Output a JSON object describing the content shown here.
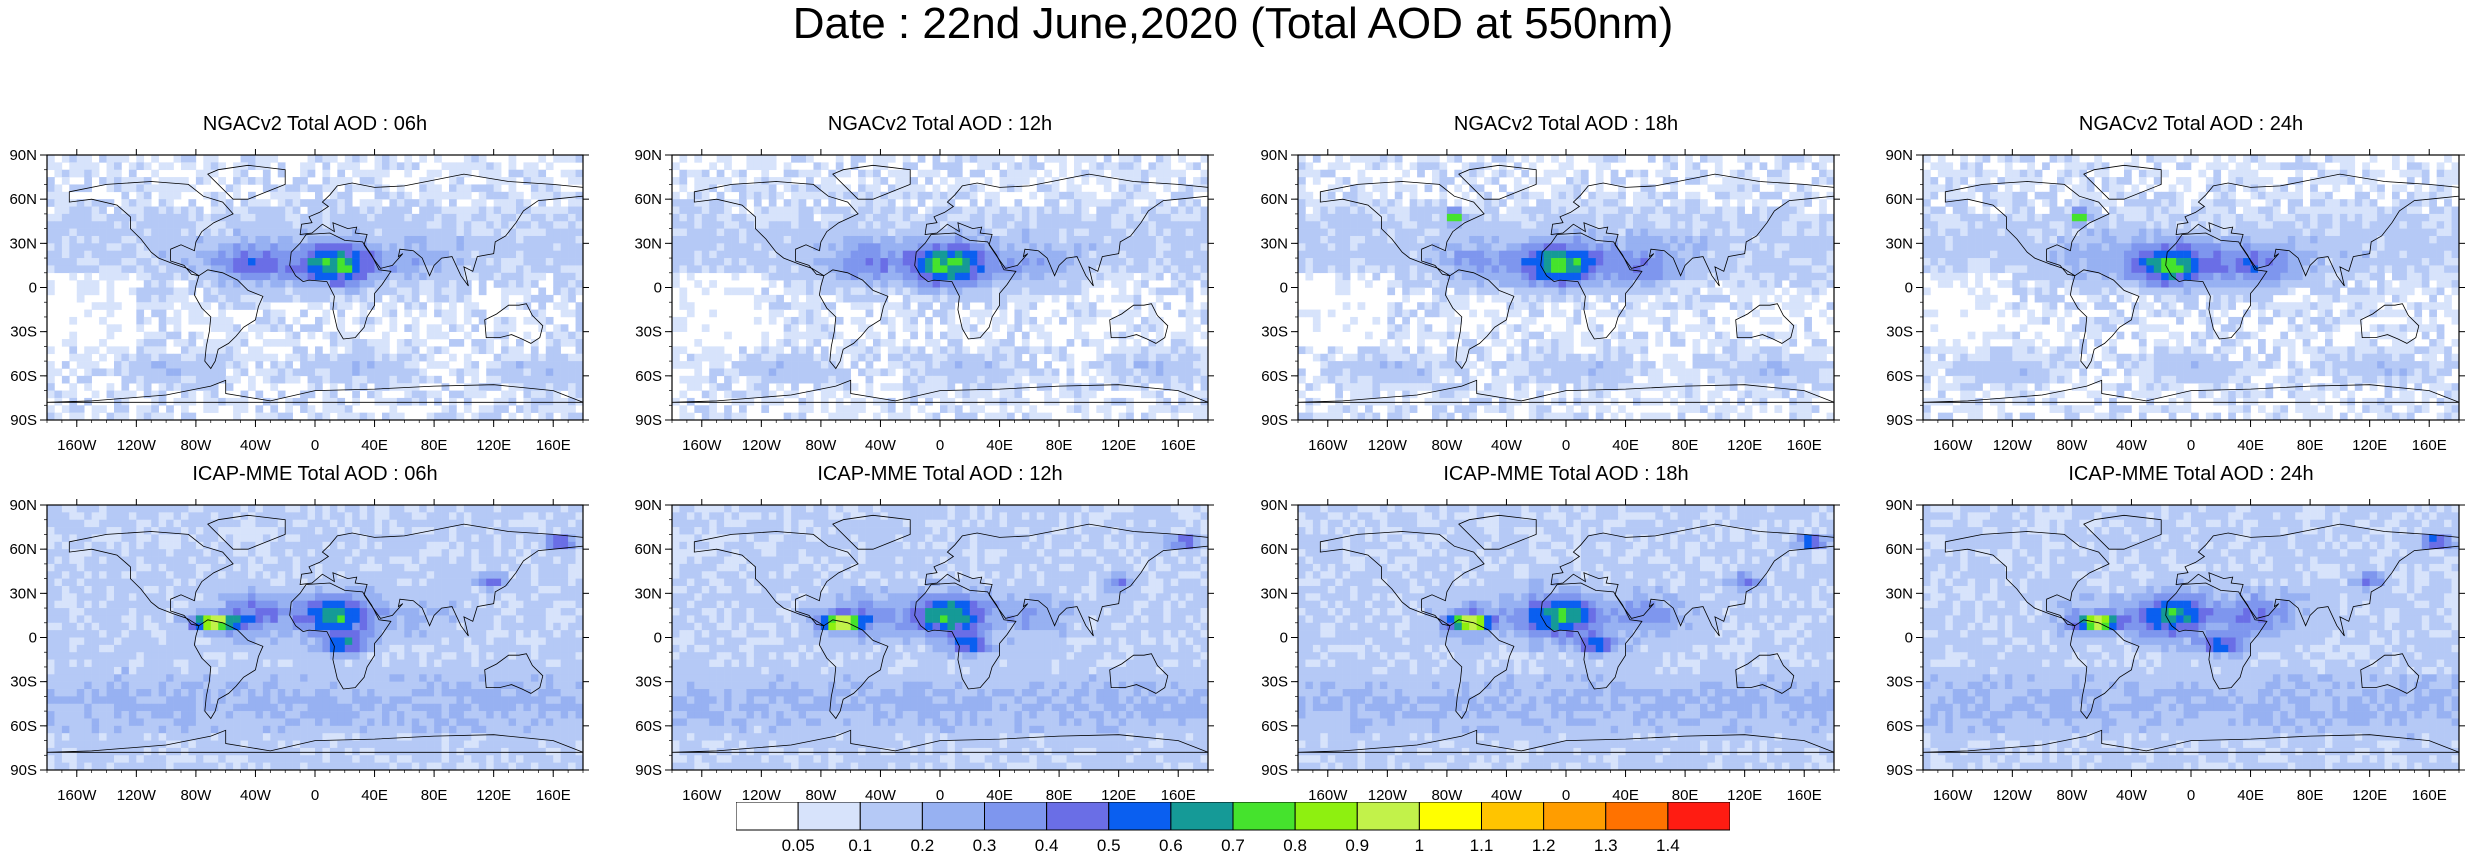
{
  "title": "Date : 22nd June,2020 (Total AOD at 550nm)",
  "chart_data": {
    "type": "heatmap",
    "title": "Date : 22nd June,2020 (Total AOD at 550nm)",
    "variable": "Total AOD at 550nm",
    "x_ticks": [
      "160W",
      "120W",
      "80W",
      "40W",
      "0",
      "40E",
      "80E",
      "120E",
      "160E"
    ],
    "x_tick_values": [
      -160,
      -120,
      -80,
      -40,
      0,
      40,
      80,
      120,
      160
    ],
    "y_ticks": [
      "90N",
      "60N",
      "30N",
      "0",
      "30S",
      "60S",
      "90S"
    ],
    "y_tick_values": [
      90,
      60,
      30,
      0,
      -30,
      -60,
      -90
    ],
    "xlim": [
      -180,
      180
    ],
    "ylim": [
      -90,
      90
    ],
    "panels": [
      {
        "title": "NGACv2 Total AOD : 06h",
        "model": "NGACv2",
        "hour": "06h"
      },
      {
        "title": "NGACv2 Total AOD : 12h",
        "model": "NGACv2",
        "hour": "12h"
      },
      {
        "title": "NGACv2 Total AOD : 18h",
        "model": "NGACv2",
        "hour": "18h"
      },
      {
        "title": "NGACv2 Total AOD : 24h",
        "model": "NGACv2",
        "hour": "24h"
      },
      {
        "title": "ICAP-MME Total AOD : 06h",
        "model": "ICAP-MME",
        "hour": "06h"
      },
      {
        "title": "ICAP-MME Total AOD : 12h",
        "model": "ICAP-MME",
        "hour": "12h"
      },
      {
        "title": "ICAP-MME Total AOD : 18h",
        "model": "ICAP-MME",
        "hour": "18h"
      },
      {
        "title": "ICAP-MME Total AOD : 24h",
        "model": "ICAP-MME",
        "hour": "24h"
      }
    ],
    "colorbar": {
      "levels": [
        "0.05",
        "0.1",
        "0.2",
        "0.3",
        "0.4",
        "0.5",
        "0.6",
        "0.7",
        "0.8",
        "0.9",
        "1",
        "1.1",
        "1.2",
        "1.3",
        "1.4"
      ],
      "colors": [
        "#ffffff",
        "#d7e3fb",
        "#b5c9f6",
        "#97b1f2",
        "#7e96ee",
        "#6a6ee6",
        "#0a5ff0",
        "#159a97",
        "#45e32d",
        "#8ef010",
        "#c2f24a",
        "#ffff00",
        "#ffc400",
        "#ff9d00",
        "#ff7200",
        "#ff1c12"
      ]
    }
  }
}
